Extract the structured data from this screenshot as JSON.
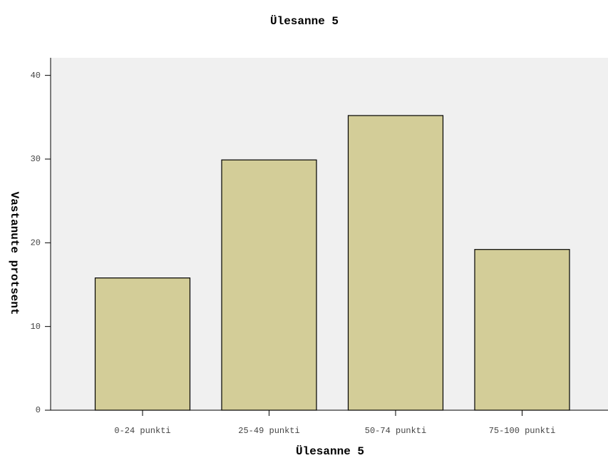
{
  "chart_data": {
    "type": "bar",
    "title": "Ülesanne 5",
    "x_label": "Ülesanne 5",
    "y_label": "Vastanute protsent",
    "categories": [
      "0-24 punkti",
      "25-49 punkti",
      "50-74 punkti",
      "75-100 punkti"
    ],
    "values": [
      15.8,
      29.9,
      35.2,
      19.2
    ],
    "color": "#d3cd98",
    "ylim": [
      0,
      42.1
    ],
    "yticks": [
      0,
      10,
      20,
      30,
      40
    ],
    "grid": false
  }
}
